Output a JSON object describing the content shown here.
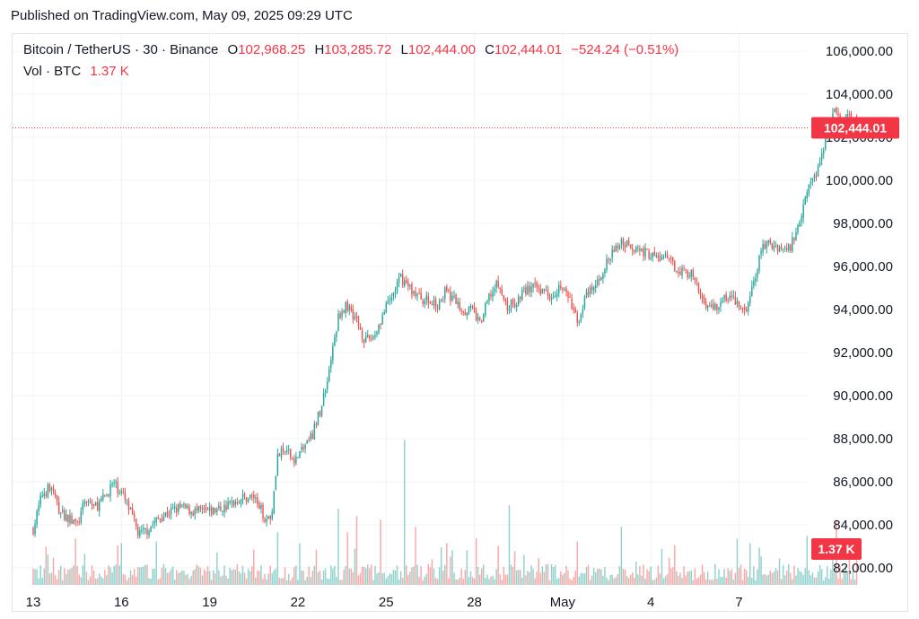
{
  "header": {
    "published": "Published on TradingView.com, May 09, 2025 09:29 UTC"
  },
  "legend": {
    "symbol": "Bitcoin / TetherUS · 30 · Binance",
    "o_label": "O",
    "o_value": "102,968.25",
    "h_label": "H",
    "h_value": "103,285.72",
    "l_label": "L",
    "l_value": "102,444.00",
    "c_label": "C",
    "c_value": "102,444.01",
    "change": "−524.24 (−0.51%)",
    "vol_label": "Vol · BTC",
    "vol_value": "1.37 K"
  },
  "price_tag": "102,444.01",
  "volume_tag": "1.37 K",
  "colors": {
    "up": "#26a69a",
    "down": "#ef5350",
    "tag": "#f23645",
    "grid": "#f0f3fa"
  },
  "chart_data": {
    "type": "candlestick",
    "title": "",
    "xlabel": "",
    "ylabel": "",
    "ylim": [
      81200,
      106800
    ],
    "y_ticks": [
      82000,
      84000,
      86000,
      88000,
      90000,
      92000,
      94000,
      96000,
      98000,
      100000,
      102000,
      104000,
      106000
    ],
    "y_tick_labels": [
      "82,000.00",
      "84,000.00",
      "86,000.00",
      "88,000.00",
      "90,000.00",
      "92,000.00",
      "94,000.00",
      "96,000.00",
      "98,000.00",
      "100,000.00",
      "102,000.00",
      "104,000.00",
      "106,000.00"
    ],
    "x_ticks": [
      {
        "label": "13",
        "day": 0
      },
      {
        "label": "16",
        "day": 3
      },
      {
        "label": "19",
        "day": 6
      },
      {
        "label": "22",
        "day": 9
      },
      {
        "label": "25",
        "day": 12
      },
      {
        "label": "28",
        "day": 15
      },
      {
        "label": "May",
        "day": 18
      },
      {
        "label": "4",
        "day": 21
      },
      {
        "label": "7",
        "day": 24
      }
    ],
    "last_price": 102444.01,
    "ohlc_last": {
      "open": 102968.25,
      "high": 103285.72,
      "low": 102444.0,
      "close": 102444.01
    },
    "close_path": [
      [
        0.0,
        83800
      ],
      [
        0.3,
        85400
      ],
      [
        0.6,
        85800
      ],
      [
        0.9,
        84600
      ],
      [
        1.2,
        84300
      ],
      [
        1.5,
        84000
      ],
      [
        1.8,
        85200
      ],
      [
        2.1,
        84800
      ],
      [
        2.4,
        85200
      ],
      [
        2.7,
        85900
      ],
      [
        3.0,
        85500
      ],
      [
        3.3,
        84600
      ],
      [
        3.6,
        83500
      ],
      [
        3.9,
        83800
      ],
      [
        4.2,
        84200
      ],
      [
        4.5,
        84500
      ],
      [
        5.0,
        84800
      ],
      [
        5.5,
        84600
      ],
      [
        6.0,
        84600
      ],
      [
        6.5,
        84800
      ],
      [
        7.0,
        85200
      ],
      [
        7.5,
        85300
      ],
      [
        7.9,
        84300
      ],
      [
        8.1,
        84400
      ],
      [
        8.3,
        87200
      ],
      [
        8.6,
        87400
      ],
      [
        8.9,
        87000
      ],
      [
        9.2,
        87600
      ],
      [
        9.5,
        88200
      ],
      [
        9.8,
        89500
      ],
      [
        10.1,
        91500
      ],
      [
        10.4,
        93800
      ],
      [
        10.7,
        94200
      ],
      [
        11.0,
        93500
      ],
      [
        11.3,
        92500
      ],
      [
        11.6,
        92800
      ],
      [
        11.9,
        93800
      ],
      [
        12.2,
        94600
      ],
      [
        12.5,
        95500
      ],
      [
        12.8,
        95000
      ],
      [
        13.1,
        94600
      ],
      [
        13.4,
        94400
      ],
      [
        13.7,
        94200
      ],
      [
        14.0,
        94800
      ],
      [
        14.3,
        94500
      ],
      [
        14.6,
        94000
      ],
      [
        14.9,
        94000
      ],
      [
        15.2,
        93300
      ],
      [
        15.5,
        94600
      ],
      [
        15.8,
        95200
      ],
      [
        16.1,
        94100
      ],
      [
        16.4,
        94300
      ],
      [
        16.7,
        94900
      ],
      [
        17.0,
        95000
      ],
      [
        17.3,
        94900
      ],
      [
        17.6,
        94700
      ],
      [
        17.9,
        95100
      ],
      [
        18.2,
        94600
      ],
      [
        18.5,
        93400
      ],
      [
        18.8,
        94600
      ],
      [
        19.1,
        95000
      ],
      [
        19.4,
        95900
      ],
      [
        19.7,
        96600
      ],
      [
        20.0,
        97200
      ],
      [
        20.3,
        97000
      ],
      [
        20.6,
        96800
      ],
      [
        20.9,
        96600
      ],
      [
        21.2,
        96400
      ],
      [
        21.5,
        96400
      ],
      [
        21.8,
        96000
      ],
      [
        22.1,
        95800
      ],
      [
        22.4,
        95600
      ],
      [
        22.7,
        94600
      ],
      [
        23.0,
        94100
      ],
      [
        23.3,
        94200
      ],
      [
        23.6,
        94600
      ],
      [
        23.9,
        94400
      ],
      [
        24.2,
        93800
      ],
      [
        24.5,
        95200
      ],
      [
        24.8,
        97000
      ],
      [
        25.1,
        97000
      ],
      [
        25.4,
        96900
      ],
      [
        25.7,
        96800
      ],
      [
        26.0,
        97800
      ],
      [
        26.3,
        99600
      ],
      [
        26.6,
        100200
      ],
      [
        26.9,
        101800
      ],
      [
        27.2,
        103200
      ],
      [
        27.5,
        102600
      ],
      [
        27.8,
        103000
      ],
      [
        28.0,
        102444.01
      ]
    ],
    "volume_unit": "K BTC",
    "volume_ylim": [
      0,
      9
    ],
    "volume_spikes": [
      {
        "day": 0.45,
        "value": 2.1
      },
      {
        "day": 3.0,
        "value": 2.3
      },
      {
        "day": 4.2,
        "value": 2.4
      },
      {
        "day": 8.3,
        "value": 2.9
      },
      {
        "day": 10.4,
        "value": 4.2
      },
      {
        "day": 10.7,
        "value": 2.9
      },
      {
        "day": 11.0,
        "value": 3.8
      },
      {
        "day": 11.8,
        "value": 3.6
      },
      {
        "day": 12.6,
        "value": 8.0
      },
      {
        "day": 13.0,
        "value": 3.2
      },
      {
        "day": 16.2,
        "value": 4.4
      },
      {
        "day": 18.5,
        "value": 2.4
      },
      {
        "day": 20.0,
        "value": 3.2
      },
      {
        "day": 21.8,
        "value": 2.2
      },
      {
        "day": 24.4,
        "value": 2.3
      },
      {
        "day": 26.3,
        "value": 2.7
      },
      {
        "day": 27.3,
        "value": 3.6
      },
      {
        "day": 28.0,
        "value": 1.37
      }
    ]
  }
}
